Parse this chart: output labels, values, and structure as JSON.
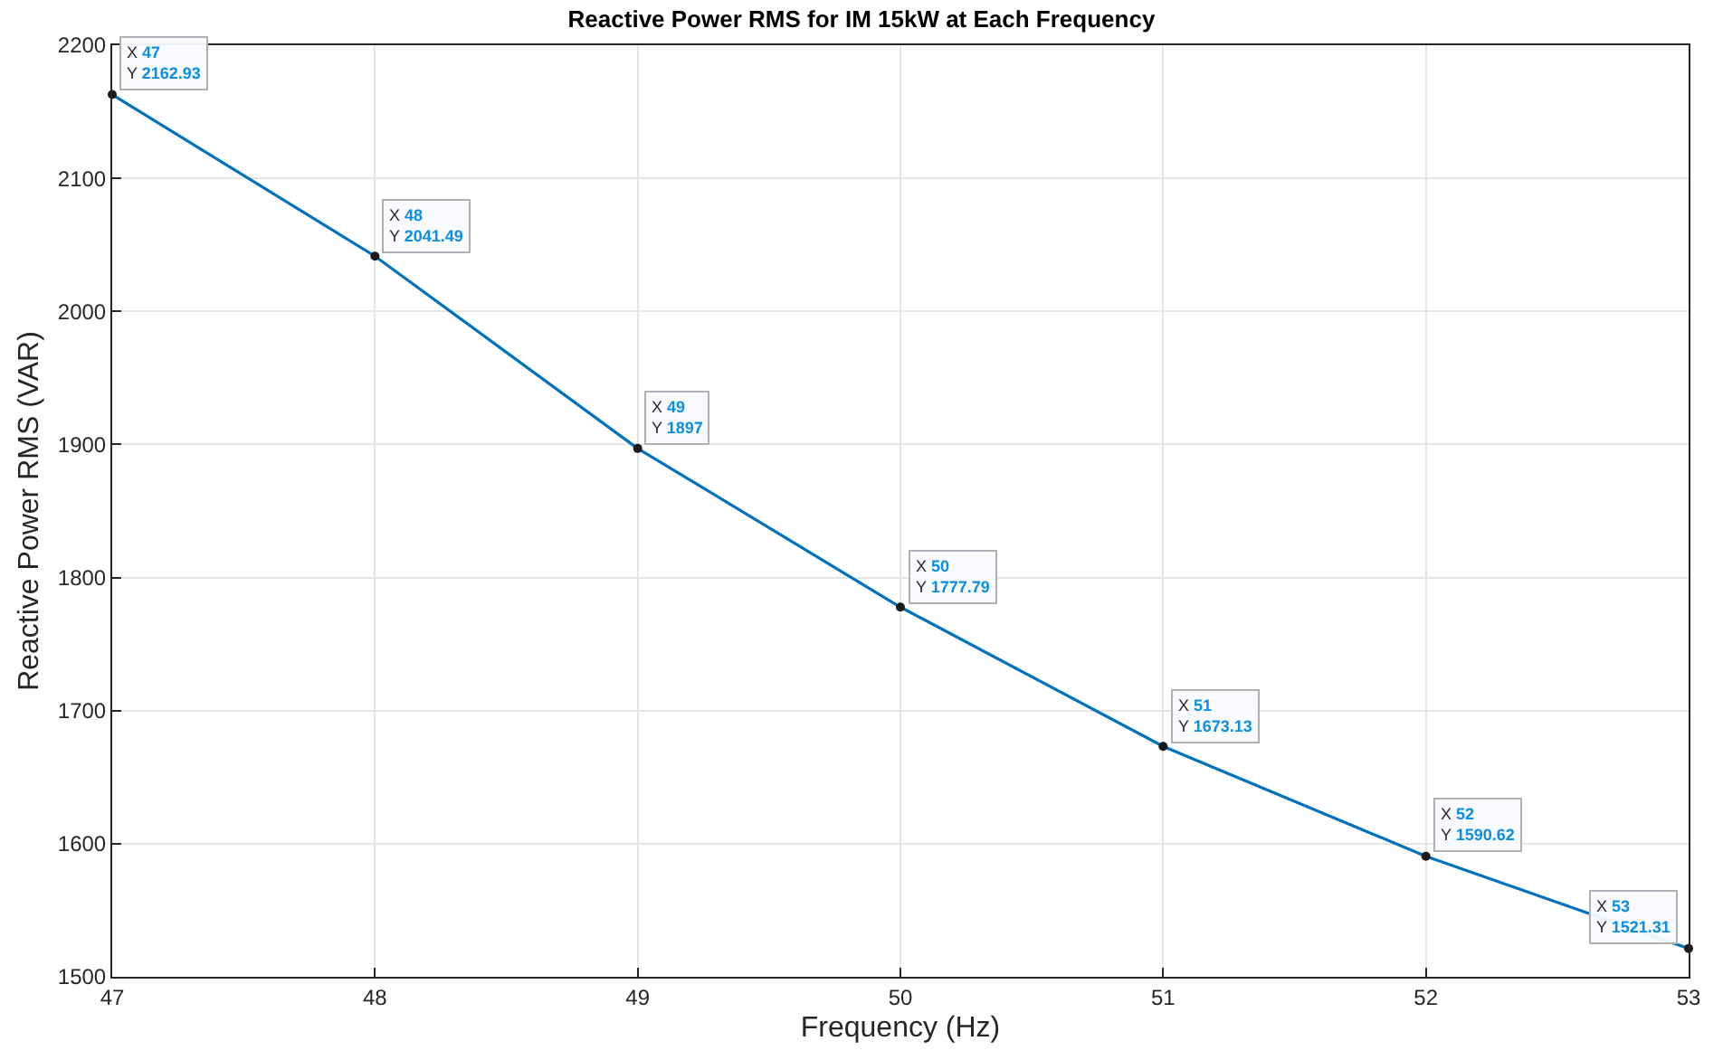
{
  "chart_data": {
    "type": "line",
    "title": "Reactive Power RMS for IM 15kW at Each Frequency",
    "xlabel": "Frequency (Hz)",
    "ylabel": "Reactive Power RMS (VAR)",
    "x": [
      47,
      48,
      49,
      50,
      51,
      52,
      53
    ],
    "series": [
      {
        "color": "#0072bd",
        "values": [
          2162.93,
          2041.49,
          1897,
          1777.79,
          1673.13,
          1590.62,
          1521.31
        ]
      }
    ],
    "xlim": [
      47,
      53
    ],
    "xticks": [
      47,
      48,
      49,
      50,
      51,
      52,
      53
    ],
    "ylim": [
      1500,
      2200
    ],
    "yticks": [
      1500,
      1600,
      1700,
      1800,
      1900,
      2000,
      2100,
      2200
    ],
    "grid": true,
    "marker": "circle",
    "line_style": "solid",
    "annotations": [
      {
        "text": "X 47\nY 2162.93",
        "x": 47,
        "y": 2162.93
      },
      {
        "text": "X 48\nY 2041.49",
        "x": 48,
        "y": 2041.49
      },
      {
        "text": "X 49\nY 1897",
        "x": 49,
        "y": 1897
      },
      {
        "text": "X 50\nY 1777.79",
        "x": 50,
        "y": 1777.79
      },
      {
        "text": "X 51\nY 1673.13",
        "x": 51,
        "y": 1673.13
      },
      {
        "text": "X 52\nY 1590.62",
        "x": 52,
        "y": 1590.62
      },
      {
        "text": "X 53\nY 1521.31",
        "x": 53,
        "y": 1521.31
      }
    ]
  }
}
